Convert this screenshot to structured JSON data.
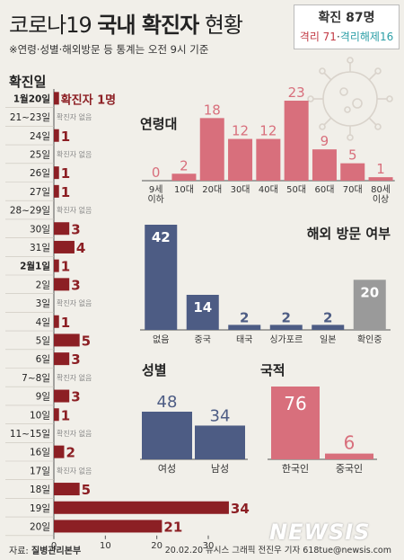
{
  "header": {
    "title_pre": "코로나19 ",
    "title_bold": "국내 확진자",
    "title_post": " 현황",
    "subtitle": "※연령·성별·해외방문 등 통계는 오전 9시 기준"
  },
  "summary": {
    "total_label": "확진 87명",
    "isolated_label": "격리 71",
    "separator": "·",
    "released_label": "격리해제16"
  },
  "colors": {
    "red_bar": "#8c1f24",
    "pink_bar": "#d86f7c",
    "navy_bar": "#4d5c84",
    "gray_bar": "#9a9a9a"
  },
  "footer": {
    "source_label": "자료: ",
    "source_value": "질병관리본부",
    "credit": "20.02.20  뉴시스 그래픽  전진우 기자  618tue@newsis.com",
    "logo": "NEWSIS"
  },
  "chart_data": [
    {
      "id": "daily",
      "type": "bar",
      "orientation": "horizontal",
      "title": "확진일",
      "categories": [
        "1월20일",
        "21~23일",
        "24일",
        "25일",
        "26일",
        "27일",
        "28~29일",
        "30일",
        "31일",
        "2월1일",
        "2일",
        "3일",
        "4일",
        "5일",
        "6일",
        "7~8일",
        "9일",
        "10일",
        "11~15일",
        "16일",
        "17일",
        "18일",
        "19일",
        "20일"
      ],
      "category_parts": [
        [
          "1월",
          "20일"
        ],
        [
          "",
          "21~23일"
        ],
        [
          "",
          "24일"
        ],
        [
          "",
          "25일"
        ],
        [
          "",
          "26일"
        ],
        [
          "",
          "27일"
        ],
        [
          "",
          "28~29일"
        ],
        [
          "",
          "30일"
        ],
        [
          "",
          "31일"
        ],
        [
          "2월",
          "1일"
        ],
        [
          "",
          "2일"
        ],
        [
          "",
          "3일"
        ],
        [
          "",
          "4일"
        ],
        [
          "",
          "5일"
        ],
        [
          "",
          "6일"
        ],
        [
          "",
          "7~8일"
        ],
        [
          "",
          "9일"
        ],
        [
          "",
          "10일"
        ],
        [
          "",
          "11~15일"
        ],
        [
          "",
          "16일"
        ],
        [
          "",
          "17일"
        ],
        [
          "",
          "18일"
        ],
        [
          "",
          "19일"
        ],
        [
          "",
          "20일"
        ]
      ],
      "values": [
        1,
        0,
        1,
        0,
        1,
        1,
        0,
        3,
        4,
        1,
        3,
        0,
        1,
        5,
        3,
        0,
        3,
        1,
        0,
        2,
        0,
        5,
        34,
        21
      ],
      "value_labels": [
        "확진자 1명",
        "확진자 없음",
        "1",
        "확진자 없음",
        "1",
        "1",
        "확진자 없음",
        "3",
        "4",
        "1",
        "3",
        "확진자 없음",
        "1",
        "5",
        "3",
        "확진자 없음",
        "3",
        "1",
        "확진자 없음",
        "2",
        "확진자 없음",
        "5",
        "34",
        "21"
      ],
      "xticks": [
        0,
        10,
        20,
        30
      ],
      "xlim": [
        0,
        40
      ]
    },
    {
      "id": "age",
      "type": "bar",
      "title": "연령대",
      "categories": [
        "9세 이하",
        "10대",
        "20대",
        "30대",
        "40대",
        "50대",
        "60대",
        "70대",
        "80세 이상"
      ],
      "category_lines": [
        [
          "9세",
          "이하"
        ],
        [
          "10대"
        ],
        [
          "20대"
        ],
        [
          "30대"
        ],
        [
          "40대"
        ],
        [
          "50대"
        ],
        [
          "60대"
        ],
        [
          "70대"
        ],
        [
          "80세",
          "이상"
        ]
      ],
      "values": [
        0,
        2,
        18,
        12,
        12,
        23,
        9,
        5,
        1
      ],
      "ylim": [
        0,
        25
      ]
    },
    {
      "id": "overseas",
      "type": "bar",
      "title": "해외 방문 여부",
      "categories": [
        "없음",
        "중국",
        "태국",
        "싱가포르",
        "일본",
        "확인중"
      ],
      "values": [
        42,
        14,
        2,
        2,
        2,
        20
      ],
      "ylim": [
        0,
        45
      ]
    },
    {
      "id": "gender",
      "type": "bar",
      "title": "성별",
      "categories": [
        "여성",
        "남성"
      ],
      "values": [
        48,
        34
      ],
      "ylim": [
        0,
        80
      ]
    },
    {
      "id": "nationality",
      "type": "bar",
      "title": "국적",
      "categories": [
        "한국인",
        "중국인"
      ],
      "values": [
        76,
        6
      ],
      "ylim": [
        0,
        80
      ]
    }
  ]
}
